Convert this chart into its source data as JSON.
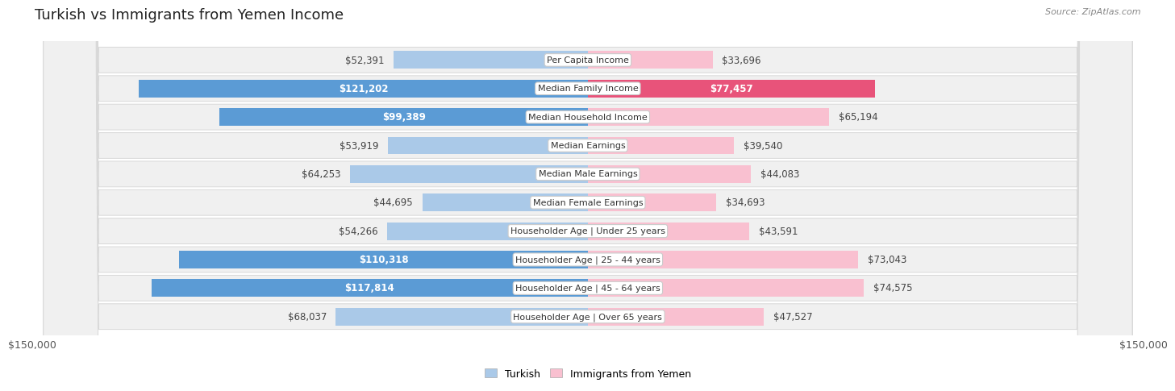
{
  "title": "Turkish vs Immigrants from Yemen Income",
  "source": "Source: ZipAtlas.com",
  "categories": [
    "Per Capita Income",
    "Median Family Income",
    "Median Household Income",
    "Median Earnings",
    "Median Male Earnings",
    "Median Female Earnings",
    "Householder Age | Under 25 years",
    "Householder Age | 25 - 44 years",
    "Householder Age | 45 - 64 years",
    "Householder Age | Over 65 years"
  ],
  "turkish_values": [
    52391,
    121202,
    99389,
    53919,
    64253,
    44695,
    54266,
    110318,
    117814,
    68037
  ],
  "yemen_values": [
    33696,
    77457,
    65194,
    39540,
    44083,
    34693,
    43591,
    73043,
    74575,
    47527
  ],
  "turkish_labels": [
    "$52,391",
    "$121,202",
    "$99,389",
    "$53,919",
    "$64,253",
    "$44,695",
    "$54,266",
    "$110,318",
    "$117,814",
    "$68,037"
  ],
  "yemen_labels": [
    "$33,696",
    "$77,457",
    "$65,194",
    "$39,540",
    "$44,083",
    "$34,693",
    "$43,591",
    "$73,043",
    "$74,575",
    "$47,527"
  ],
  "turkish_light_color": "#aac9e8",
  "turkish_dark_color": "#5b9bd5",
  "yemen_light_color": "#f9c0d0",
  "yemen_dark_color": "#e8537a",
  "axis_max": 150000,
  "legend_turkish": "Turkish",
  "legend_yemen": "Immigrants from Yemen",
  "row_bg": "#f0f0f0",
  "label_fontsize": 8.5,
  "category_fontsize": 8.0,
  "title_fontsize": 13,
  "inside_label_threshold": 75000,
  "bar_height": 0.62
}
